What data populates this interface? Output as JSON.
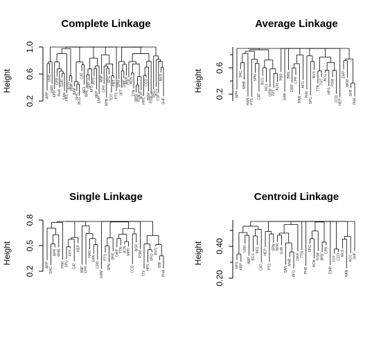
{
  "chart_data": [
    {
      "type": "dendrogram",
      "title": "Complete Linkage",
      "ylabel": "Height",
      "yticks": [
        "0.2",
        "0.6",
        "1.0"
      ],
      "ylim": [
        0.05,
        1.05
      ],
      "leaf_labels": [
        "ARP",
        "VRR",
        "HAN",
        "EPR",
        "CPR",
        "PHR",
        "GUR",
        "SAN",
        "FHS",
        "ACD",
        "PHA",
        "BAP",
        "SHC",
        "BCG",
        "CAT",
        "MCL",
        "BRE",
        "SPP",
        "AFG",
        "PTS",
        "HEP",
        "EMP",
        "ANP",
        "CPR",
        "HPN",
        "SPG",
        "TOT",
        "PBT",
        "PTS",
        "SPN",
        "SFT",
        "DWF",
        "RVR",
        "TTK",
        "ACN",
        "TTN",
        "MPD",
        "RTN",
        "BGR",
        "HPS",
        "CCD",
        "BKM",
        "RSM",
        "SRO",
        "ACG",
        "TTP",
        "NVS",
        "SHF"
      ]
    },
    {
      "type": "dendrogram",
      "title": "Average Linkage",
      "ylabel": "Height",
      "yticks": [
        "0.2",
        "0.6"
      ],
      "ylim": [
        0.15,
        0.9
      ],
      "leaf_labels": [
        "BPR",
        "SHC",
        "MHB",
        "HAN",
        "PTS",
        "SPN",
        "CAT",
        "BCG",
        "MCL",
        "GRM",
        "FPT",
        "ACN",
        "PBR",
        "SAN",
        "BRE",
        "DWF",
        "CPR",
        "HAN",
        "AFG",
        "PHR",
        "SPG",
        "NVS",
        "TTN",
        "TOT",
        "ACG",
        "HPS",
        "RSM",
        "CCD",
        "HEP",
        "EMP",
        "BKM",
        "SHF",
        "PHA"
      ]
    },
    {
      "type": "dendrogram",
      "title": "Single Linkage",
      "ylabel": "Height",
      "yticks": [
        "0.2",
        "0.5",
        "0.8"
      ],
      "ylim": [
        0.15,
        0.85
      ],
      "leaf_labels": [
        "ARP",
        "SHC",
        "BPR",
        "MHB",
        "PHR",
        "SPG",
        "FPT",
        "CAT",
        "HEP",
        "ANP",
        "EPR",
        "HAN",
        "SAN",
        "CPR",
        "GRM",
        "PTS",
        "SPN",
        "BRE",
        "DWF",
        "TTN",
        "ACN",
        "MPD",
        "CCD",
        "BGR",
        "RSM",
        "TTK",
        "HPS",
        "SRO",
        "NVS",
        "SHF",
        "PHA"
      ]
    },
    {
      "type": "dendrogram",
      "title": "Centroid Linkage",
      "ylabel": "Height",
      "yticks": [
        "0.20",
        "0.40"
      ],
      "ylim": [
        0.15,
        0.55
      ],
      "leaf_labels": [
        "HPS",
        "ARP",
        "VRR",
        "ABP",
        "BCG",
        "MCL",
        "CAT",
        "HEP",
        "PTS",
        "SPN",
        "BPR",
        "GUR",
        "SAN",
        "MHB",
        "AFG",
        "DWF",
        "TTN",
        "PHR",
        "SPG",
        "ACN",
        "RSM",
        "BRE",
        "CPR",
        "EMP",
        "TOT",
        "CCD",
        "NVS",
        "HAN",
        "ACG",
        "SHF"
      ]
    }
  ]
}
